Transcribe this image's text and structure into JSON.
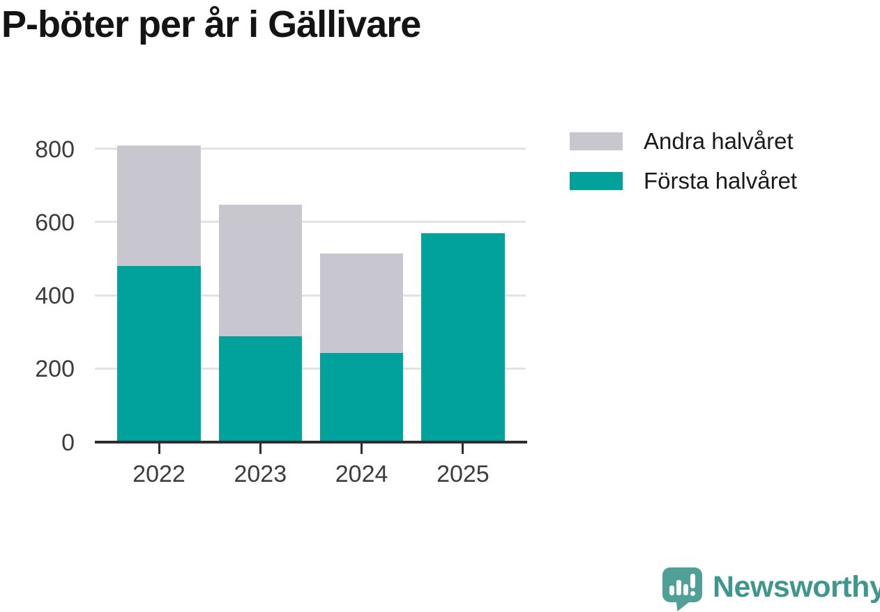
{
  "title": "P-böter per år i Gällivare",
  "chart_data": {
    "type": "bar",
    "stacked": true,
    "title": "P-böter per år i Gällivare",
    "categories": [
      "2022",
      "2023",
      "2024",
      "2025"
    ],
    "series": [
      {
        "name": "Första halvåret",
        "color": "#00a29b",
        "values": [
          480,
          288,
          242,
          569
        ]
      },
      {
        "name": "Andra halvåret",
        "color": "#c8c6ce",
        "values": [
          328,
          359,
          273,
          0
        ]
      }
    ],
    "xlabel": "",
    "ylabel": "",
    "yticks": [
      0,
      200,
      400,
      600,
      800
    ],
    "ylim": [
      0,
      850
    ],
    "grid": "horizontal",
    "legend_position": "top-right",
    "legend": [
      {
        "label": "Andra halvåret",
        "color": "#c8c6ce"
      },
      {
        "label": "Första halvåret",
        "color": "#00a29b"
      }
    ]
  },
  "colors": {
    "bar_teal": "#00a29b",
    "bar_gray": "#c8c6ce",
    "gridline": "#e3e3e3",
    "axis": "#2e2e2e",
    "tick_label": "#3c3c3c",
    "title_text": "#141414",
    "legend_text": "#1a1a1a",
    "logo_icon": "#50a097",
    "logo_text": "#3f968d"
  },
  "branding": {
    "logo_text": "Newsworthy",
    "logo_icon": "newsworthy-speech-bubble-bar-chart-icon"
  }
}
